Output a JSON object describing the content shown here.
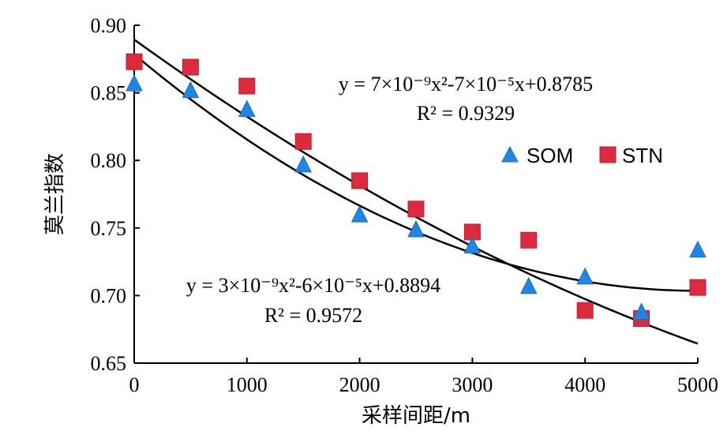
{
  "chart_data": {
    "type": "scatter",
    "xlabel": "采样间距/m",
    "ylabel": "莫兰指数",
    "xlim": [
      0,
      5000
    ],
    "ylim": [
      0.65,
      0.9
    ],
    "x_ticks": [
      "0",
      "1000",
      "2000",
      "3000",
      "4000",
      "5000"
    ],
    "y_ticks": [
      "0.65",
      "0.70",
      "0.75",
      "0.80",
      "0.85",
      "0.90"
    ],
    "grid": false,
    "legend_position": "right",
    "series": [
      {
        "name": "SOM",
        "marker": "triangle",
        "color": "#1f86e6",
        "x": [
          0,
          500,
          1000,
          1500,
          2000,
          2500,
          3000,
          3500,
          4000,
          4500,
          5000
        ],
        "y": [
          0.857,
          0.852,
          0.838,
          0.797,
          0.76,
          0.749,
          0.737,
          0.707,
          0.714,
          0.688,
          0.734
        ]
      },
      {
        "name": "STN",
        "marker": "square",
        "color": "#dd2a3e",
        "x": [
          0,
          500,
          1000,
          1500,
          2000,
          2500,
          3000,
          3500,
          4000,
          4500,
          5000
        ],
        "y": [
          0.873,
          0.869,
          0.855,
          0.814,
          0.785,
          0.764,
          0.747,
          0.741,
          0.689,
          0.683,
          0.706
        ]
      }
    ],
    "fits": [
      {
        "for": "SOM",
        "coefficients": [
          3e-09,
          -6e-05,
          0.8894
        ],
        "equation": "y = 3×10⁻⁹x²-6×10⁻⁵x+0.8894",
        "r2": "R² = 0.9572"
      },
      {
        "for": "STN",
        "coefficients": [
          7e-09,
          -7e-05,
          0.8785
        ],
        "equation": "y = 7×10⁻⁹x²-7×10⁻⁵x+0.8785",
        "r2": "R² = 0.9329"
      }
    ]
  }
}
